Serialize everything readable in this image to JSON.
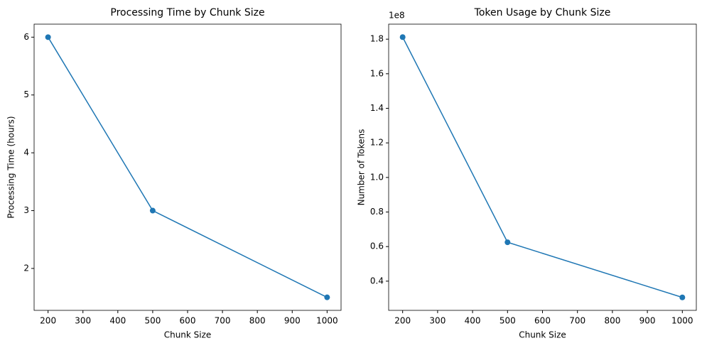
{
  "chart_data": [
    {
      "type": "line",
      "title": "Processing Time by Chunk Size",
      "xlabel": "Chunk Size",
      "ylabel": "Processing Time (hours)",
      "x": [
        200,
        500,
        1000
      ],
      "series": [
        {
          "color": "#1f77b4",
          "values": [
            6,
            3,
            1.5
          ]
        }
      ],
      "xlim": [
        160,
        1040
      ],
      "xticks": [
        200,
        300,
        400,
        500,
        600,
        700,
        800,
        900,
        1000
      ],
      "ylim": [
        1.275,
        6.225
      ],
      "yticks": [
        2,
        3,
        4,
        5,
        6
      ],
      "marker": "o"
    },
    {
      "type": "line",
      "title": "Token Usage by Chunk Size",
      "xlabel": "Chunk Size",
      "ylabel": "Number of Tokens",
      "y_offset_label": "1e8",
      "x": [
        200,
        500,
        1000
      ],
      "series": [
        {
          "color": "#1f77b4",
          "values": [
            1.812,
            0.625,
            0.306
          ]
        }
      ],
      "xlim": [
        160,
        1040
      ],
      "xticks": [
        200,
        300,
        400,
        500,
        600,
        700,
        800,
        900,
        1000
      ],
      "ylim": [
        0.231,
        1.887
      ],
      "yticks": [
        0.4,
        0.6,
        0.8,
        {
          "value": 1,
          "label": "1.0"
        },
        1.2,
        1.4,
        1.6,
        1.8
      ],
      "marker": "o"
    }
  ]
}
